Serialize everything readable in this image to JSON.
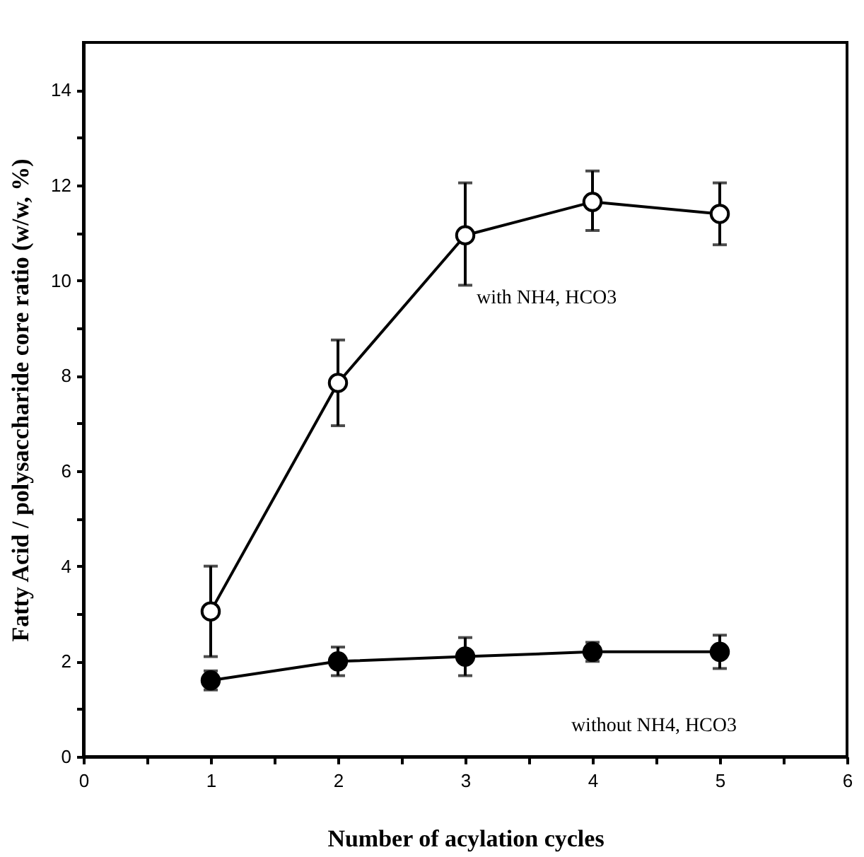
{
  "chart_data": {
    "type": "line",
    "xlabel": "Number of acylation cycles",
    "ylabel": "Fatty Acid / polysaccharide core ratio (w/w, %)",
    "x": [
      1,
      2,
      3,
      4,
      5
    ],
    "series": [
      {
        "name": "with NH4, HCO3",
        "color": "#000000",
        "values": [
          3.05,
          7.85,
          10.95,
          11.65,
          11.4
        ],
        "errors": [
          [
            2.1,
            4.0
          ],
          [
            6.95,
            8.75
          ],
          [
            9.9,
            12.05
          ],
          [
            11.05,
            12.3
          ],
          [
            10.75,
            12.05
          ]
        ]
      },
      {
        "name": "without NH4, HCO3",
        "color": "#000000",
        "values": [
          1.6,
          2.0,
          2.1,
          2.2,
          2.2
        ],
        "errors": [
          [
            1.4,
            1.8
          ],
          [
            1.7,
            2.3
          ],
          [
            1.7,
            2.5
          ],
          [
            2.0,
            2.4
          ],
          [
            1.85,
            2.55
          ]
        ]
      }
    ],
    "xlim": [
      0,
      6
    ],
    "ylim": [
      0,
      15
    ],
    "xticks": [
      0,
      {
        "value": 0.5,
        "label": null
      },
      1,
      {
        "value": 1.5,
        "label": null
      },
      2,
      {
        "value": 2.5,
        "label": null
      },
      3,
      {
        "value": 3.5,
        "label": null
      },
      4,
      {
        "value": 4.5,
        "label": null
      },
      5,
      {
        "value": 5.5,
        "label": null
      },
      6
    ],
    "yticks": [
      0,
      {
        "value": 1,
        "label": null
      },
      2,
      {
        "value": 3,
        "label": null
      },
      4,
      {
        "value": 5,
        "label": null
      },
      6,
      {
        "value": 7,
        "label": null
      },
      8,
      {
        "value": 9,
        "label": null
      },
      10,
      {
        "value": 11,
        "label": null
      },
      12,
      {
        "value": 13,
        "label": null
      },
      14
    ],
    "marker": "circle",
    "line_style": "solid",
    "grid": false,
    "legend": false
  }
}
